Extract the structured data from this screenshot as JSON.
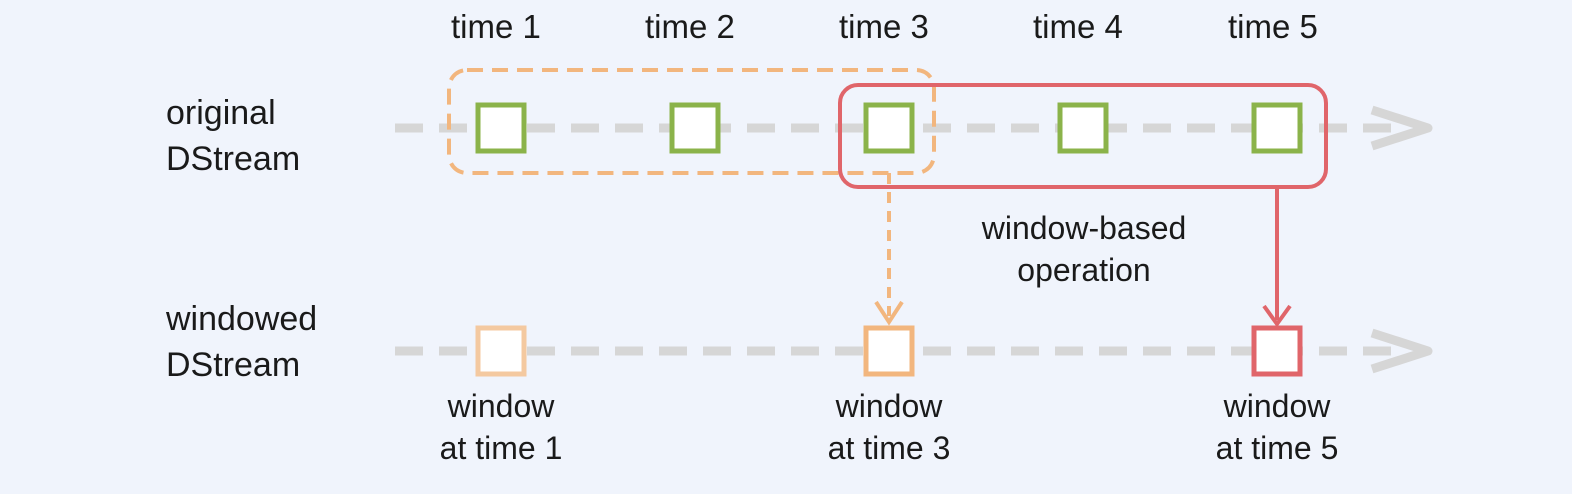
{
  "time_labels": [
    "time 1",
    "time 2",
    "time 3",
    "time 4",
    "time 5"
  ],
  "rows": {
    "original": {
      "line1": "original",
      "line2": "DStream"
    },
    "windowed": {
      "line1": "windowed",
      "line2": "DStream"
    }
  },
  "operation": {
    "line1": "window-based",
    "line2": "operation"
  },
  "windows": [
    {
      "line1": "window",
      "line2": "at time 1"
    },
    {
      "line1": "window",
      "line2": "at time 3"
    },
    {
      "line1": "window",
      "line2": "at time 5"
    }
  ],
  "colors": {
    "background": "#f0f4fc",
    "timeline": "#d6d6d6",
    "original_box": "#8bb34a",
    "window_prev": "#f4c9a0",
    "window_orange": "#f2b67e",
    "window_red": "#e0656a"
  }
}
